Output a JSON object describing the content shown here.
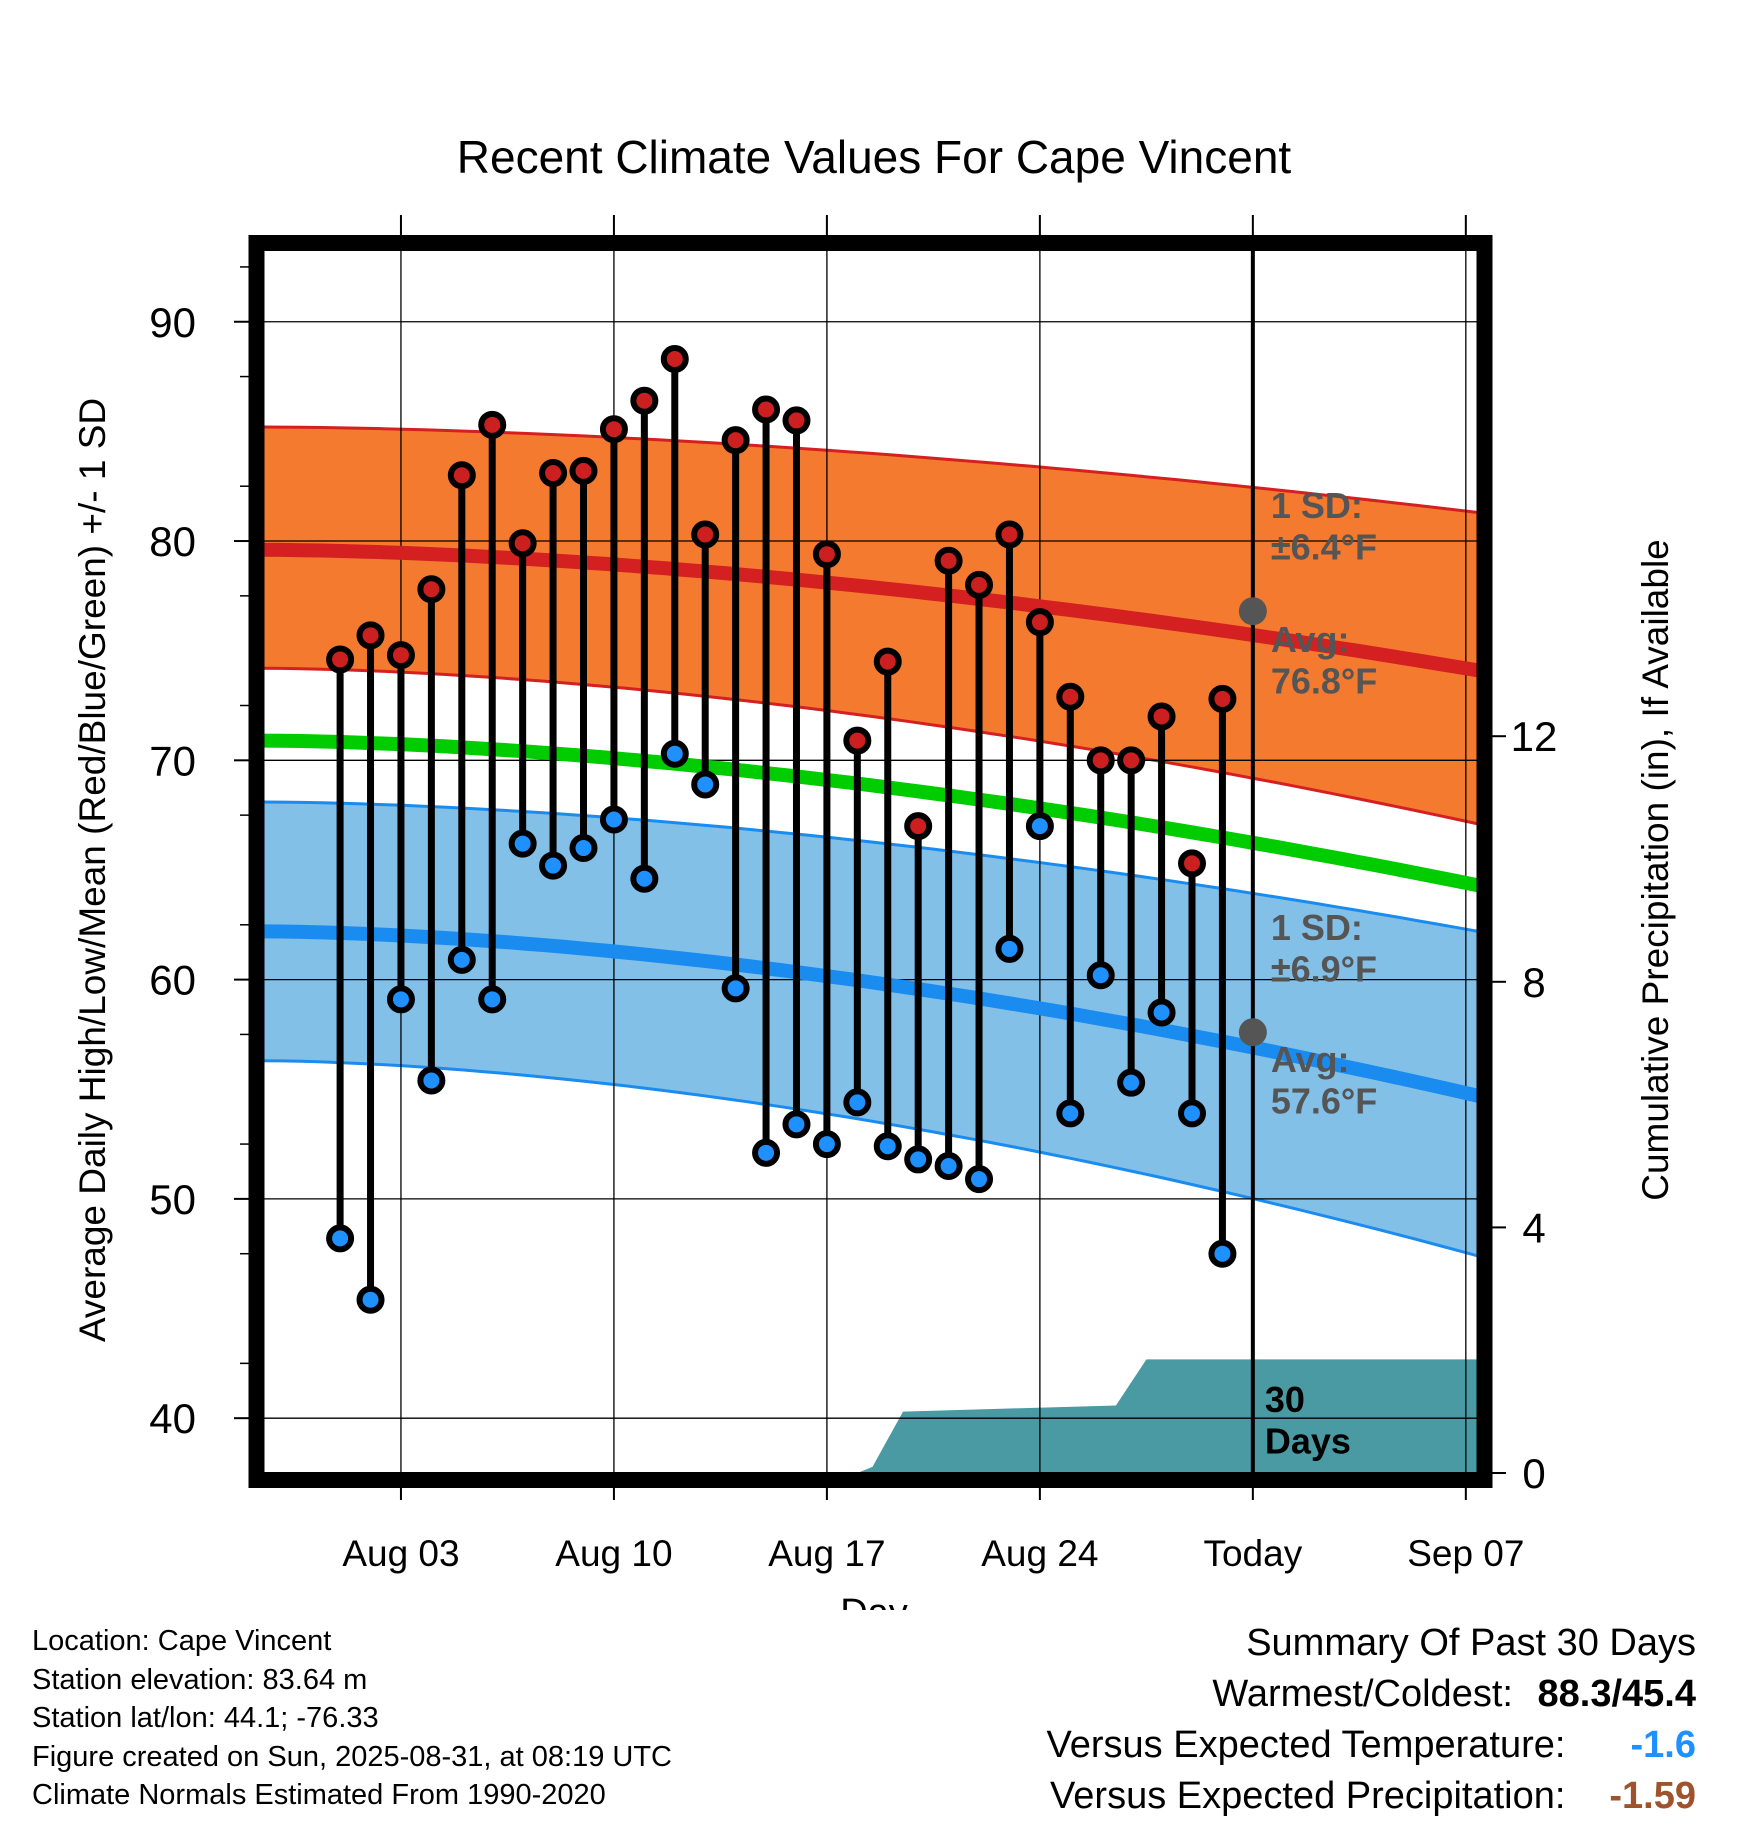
{
  "chart_data": {
    "type": "line",
    "title": "Recent Climate Values For Cape Vincent",
    "xlabel": "Day",
    "ylabel": "Average Daily High/Low/Mean (Red/Blue/Green) +/- 1 SD",
    "y2label": "Cumulative Precipitation (in), If Available",
    "ylim": [
      37.5,
      93.5
    ],
    "y2lim": [
      0,
      20
    ],
    "xlim_days": [
      -1.6,
      38.4
    ],
    "grid": true,
    "x_ticks": [
      {
        "day": 3,
        "label": "Aug 03"
      },
      {
        "day": 10,
        "label": "Aug 10"
      },
      {
        "day": 17,
        "label": "Aug 17"
      },
      {
        "day": 24,
        "label": "Aug 24"
      },
      {
        "day": 31,
        "label": "Today"
      },
      {
        "day": 38,
        "label": "Sep 07"
      }
    ],
    "y_ticks": [
      40,
      50,
      60,
      70,
      80,
      90
    ],
    "y2_ticks": [
      0,
      4,
      8,
      12
    ],
    "today_day": 31,
    "daily": [
      {
        "day": 1,
        "high": 74.6,
        "low": 48.2
      },
      {
        "day": 2,
        "high": 75.7,
        "low": 45.4
      },
      {
        "day": 3,
        "high": 74.8,
        "low": 59.1
      },
      {
        "day": 4,
        "high": 77.8,
        "low": 55.4
      },
      {
        "day": 5,
        "high": 83.0,
        "low": 60.9
      },
      {
        "day": 6,
        "high": 85.3,
        "low": 59.1
      },
      {
        "day": 7,
        "high": 79.9,
        "low": 66.2
      },
      {
        "day": 8,
        "high": 83.1,
        "low": 65.2
      },
      {
        "day": 9,
        "high": 83.2,
        "low": 66.0
      },
      {
        "day": 10,
        "high": 85.1,
        "low": 67.3
      },
      {
        "day": 11,
        "high": 86.4,
        "low": 64.6
      },
      {
        "day": 12,
        "high": 88.3,
        "low": 70.3
      },
      {
        "day": 13,
        "high": 80.3,
        "low": 68.9
      },
      {
        "day": 14,
        "high": 84.6,
        "low": 59.6
      },
      {
        "day": 15,
        "high": 86.0,
        "low": 52.1
      },
      {
        "day": 16,
        "high": 85.5,
        "low": 53.4
      },
      {
        "day": 17,
        "high": 79.4,
        "low": 52.5
      },
      {
        "day": 18,
        "high": 70.9,
        "low": 54.4
      },
      {
        "day": 19,
        "high": 74.5,
        "low": 52.4
      },
      {
        "day": 20,
        "high": 67.0,
        "low": 51.8
      },
      {
        "day": 21,
        "high": 79.1,
        "low": 51.5
      },
      {
        "day": 22,
        "high": 78.0,
        "low": 50.9
      },
      {
        "day": 23,
        "high": 80.3,
        "low": 61.4
      },
      {
        "day": 24,
        "high": 76.3,
        "low": 67.0
      },
      {
        "day": 25,
        "high": 72.9,
        "low": 53.9
      },
      {
        "day": 26,
        "high": 70.0,
        "low": 60.2
      },
      {
        "day": 27,
        "high": 70.0,
        "low": 55.3
      },
      {
        "day": 28,
        "high": 72.0,
        "low": 58.5
      },
      {
        "day": 29,
        "high": 65.3,
        "low": 53.9
      },
      {
        "day": 30,
        "high": 72.8,
        "low": 47.5
      }
    ],
    "normals": {
      "high_mean": {
        "start": 79.6,
        "end": 74.1
      },
      "high_sd_upper": {
        "start": 85.2,
        "end": 81.3
      },
      "high_sd_lower": {
        "start": 74.2,
        "end": 67.1
      },
      "mean": {
        "start": 70.9,
        "end": 64.3
      },
      "low_mean": {
        "start": 62.2,
        "end": 54.7
      },
      "low_sd_upper": {
        "start": 68.1,
        "end": 62.2
      },
      "low_sd_lower": {
        "start": 56.3,
        "end": 47.4
      }
    },
    "precip_cumulative": [
      {
        "day": 18.0,
        "value": 0
      },
      {
        "day": 18.5,
        "value": 0.1
      },
      {
        "day": 19.5,
        "value": 1.0
      },
      {
        "day": 23.0,
        "value": 1.05
      },
      {
        "day": 26.5,
        "value": 1.1
      },
      {
        "day": 27.5,
        "value": 1.85
      },
      {
        "day": 38.4,
        "value": 1.85
      }
    ],
    "annotations": {
      "high_sd": [
        "1 SD:",
        "±6.4°F"
      ],
      "high_avg": [
        "Avg:",
        "76.8°F"
      ],
      "low_sd": [
        "1 SD:",
        "±6.9°F"
      ],
      "low_avg": [
        "Avg:",
        "57.6°F"
      ],
      "precip": [
        "30",
        "Days"
      ],
      "today_high": 76.8,
      "today_low": 57.6
    },
    "colors": {
      "high_band": "#f47a30",
      "high_line": "#d42020",
      "mean_line": "#00cc00",
      "low_band": "#82c0e8",
      "low_line": "#1a8cf0",
      "precip_fill": "#4a9aa4",
      "high_dot": "#cc2020",
      "low_dot": "#1e90ff",
      "annotation": "#555555"
    }
  },
  "footer": {
    "location": "Location: Cape Vincent",
    "elevation": "Station elevation: 83.64 m",
    "latlon": "Station lat/lon: 44.1; -76.33",
    "created": "Figure created on Sun, 2025-08-31, at 08:19 UTC",
    "normals": "Climate Normals Estimated From 1990-2020"
  },
  "summary": {
    "title": "Summary Of Past 30 Days",
    "warmest_label": "Warmest/Coldest:",
    "warmest_value": "88.3/45.4",
    "temp_label": "Versus Expected Temperature:",
    "temp_value": "-1.6",
    "temp_color": "#1e90ff",
    "precip_label": "Versus Expected Precipitation:",
    "precip_value": "-1.59",
    "precip_color": "#a0522d"
  }
}
